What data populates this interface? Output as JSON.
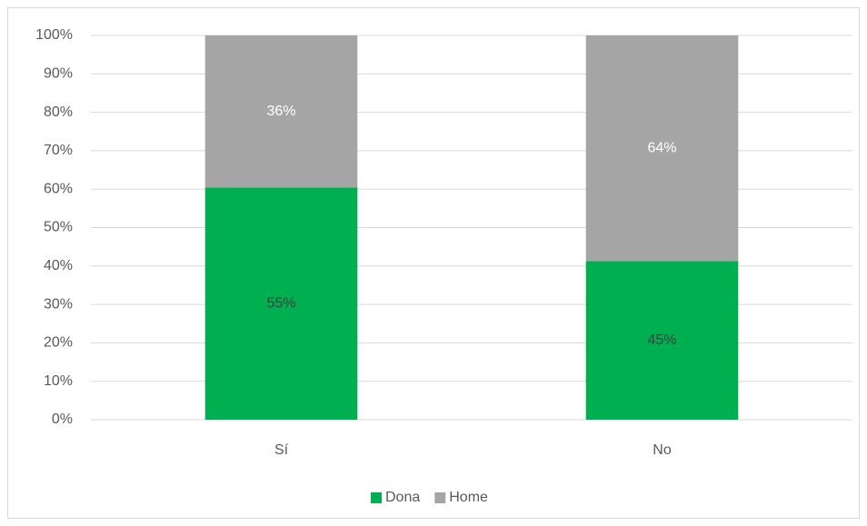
{
  "chart_data": {
    "type": "bar",
    "stacked": "percent",
    "categories": [
      "Sí",
      "No"
    ],
    "series": [
      {
        "name": "Dona",
        "color": "#00b050",
        "label_color": "#404040",
        "values": [
          55,
          45
        ],
        "value_labels": [
          "55%",
          "45%"
        ]
      },
      {
        "name": "Home",
        "color": "#a5a5a5",
        "label_color": "#ffffff",
        "values": [
          36,
          64
        ],
        "value_labels": [
          "36%",
          "64%"
        ]
      }
    ],
    "ylim": [
      0,
      100
    ],
    "yticks": [
      {
        "value": 0,
        "label": "0%"
      },
      {
        "value": 10,
        "label": "10%"
      },
      {
        "value": 20,
        "label": "20%"
      },
      {
        "value": 30,
        "label": "30%"
      },
      {
        "value": 40,
        "label": "40%"
      },
      {
        "value": 50,
        "label": "50%"
      },
      {
        "value": 60,
        "label": "60%"
      },
      {
        "value": 70,
        "label": "70%"
      },
      {
        "value": 80,
        "label": "80%"
      },
      {
        "value": 90,
        "label": "90%"
      },
      {
        "value": 100,
        "label": "100%"
      }
    ],
    "grid": true,
    "legend": "bottom"
  }
}
